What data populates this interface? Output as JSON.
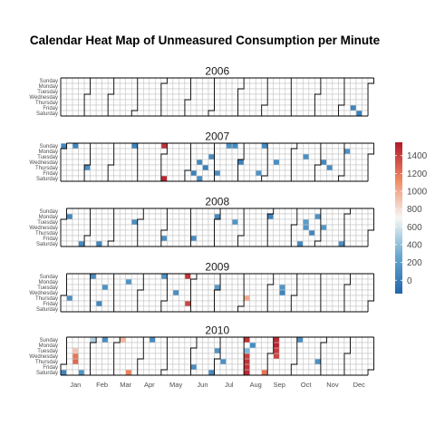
{
  "chart_data": {
    "type": "heatmap",
    "title": "Calendar Heat Map of Unmeasured Consumption per Minute",
    "years": [
      2006,
      2007,
      2008,
      2009,
      2010
    ],
    "weekdays": [
      "Sunday",
      "Monday",
      "Tuesday",
      "Wednesday",
      "Thursday",
      "Friday",
      "Saturday"
    ],
    "months": [
      "Jan",
      "Feb",
      "Mar",
      "Apr",
      "May",
      "Jun",
      "Jul",
      "Aug",
      "Sep",
      "Oct",
      "Nov",
      "Dec"
    ],
    "legend": {
      "ticks": [
        0,
        200,
        400,
        600,
        800,
        1000,
        1200,
        1400
      ],
      "min": -150,
      "max": 1550,
      "position": "right"
    },
    "colors": {
      "low": "#2166ac",
      "mid": "#f7f7f7",
      "high": "#b2182b",
      "grid": "#bdbdbd",
      "border": "#000000"
    },
    "cells": [
      {
        "year": 2006,
        "week": 49,
        "day": 5,
        "value": 40
      },
      {
        "year": 2006,
        "week": 50,
        "day": 6,
        "value": 5
      },
      {
        "year": 2007,
        "week": 0,
        "day": 0,
        "value": 60
      },
      {
        "year": 2007,
        "week": 2,
        "day": 0,
        "value": 45
      },
      {
        "year": 2007,
        "week": 4,
        "day": 4,
        "value": 100
      },
      {
        "year": 2007,
        "week": 12,
        "day": 0,
        "value": 40
      },
      {
        "year": 2007,
        "week": 17,
        "day": 6,
        "value": 1500
      },
      {
        "year": 2007,
        "week": 17,
        "day": 0,
        "value": 1450
      },
      {
        "year": 2007,
        "week": 22,
        "day": 5,
        "value": 20
      },
      {
        "year": 2007,
        "week": 23,
        "day": 3,
        "value": 60
      },
      {
        "year": 2007,
        "week": 23,
        "day": 6,
        "value": 90
      },
      {
        "year": 2007,
        "week": 24,
        "day": 4,
        "value": 10
      },
      {
        "year": 2007,
        "week": 25,
        "day": 2,
        "value": 80
      },
      {
        "year": 2007,
        "week": 26,
        "day": 5,
        "value": 100
      },
      {
        "year": 2007,
        "week": 28,
        "day": 0,
        "value": 120
      },
      {
        "year": 2007,
        "week": 29,
        "day": 0,
        "value": 90
      },
      {
        "year": 2007,
        "week": 30,
        "day": 3,
        "value": 30
      },
      {
        "year": 2007,
        "week": 33,
        "day": 5,
        "value": 140
      },
      {
        "year": 2007,
        "week": 34,
        "day": 0,
        "value": 80
      },
      {
        "year": 2007,
        "week": 36,
        "day": 3,
        "value": 100
      },
      {
        "year": 2007,
        "week": 41,
        "day": 2,
        "value": 110
      },
      {
        "year": 2007,
        "week": 44,
        "day": 3,
        "value": 70
      },
      {
        "year": 2007,
        "week": 45,
        "day": 4,
        "value": 90
      },
      {
        "year": 2007,
        "week": 48,
        "day": 1,
        "value": 130
      },
      {
        "year": 2008,
        "week": 1,
        "day": 1,
        "value": 60
      },
      {
        "year": 2008,
        "week": 3,
        "day": 6,
        "value": 70
      },
      {
        "year": 2008,
        "week": 6,
        "day": 6,
        "value": 40
      },
      {
        "year": 2008,
        "week": 12,
        "day": 2,
        "value": 110
      },
      {
        "year": 2008,
        "week": 17,
        "day": 5,
        "value": 100
      },
      {
        "year": 2008,
        "week": 22,
        "day": 5,
        "value": 80
      },
      {
        "year": 2008,
        "week": 26,
        "day": 1,
        "value": 60
      },
      {
        "year": 2008,
        "week": 29,
        "day": 2,
        "value": 150
      },
      {
        "year": 2008,
        "week": 35,
        "day": 1,
        "value": 30
      },
      {
        "year": 2008,
        "week": 40,
        "day": 6,
        "value": 50
      },
      {
        "year": 2008,
        "week": 41,
        "day": 2,
        "value": 200
      },
      {
        "year": 2008,
        "week": 41,
        "day": 3,
        "value": 150
      },
      {
        "year": 2008,
        "week": 42,
        "day": 4,
        "value": 60
      },
      {
        "year": 2008,
        "week": 43,
        "day": 1,
        "value": 130
      },
      {
        "year": 2008,
        "week": 44,
        "day": 3,
        "value": 160
      },
      {
        "year": 2008,
        "week": 47,
        "day": 6,
        "value": 100
      },
      {
        "year": 2009,
        "week": 1,
        "day": 4,
        "value": 110
      },
      {
        "year": 2009,
        "week": 5,
        "day": 0,
        "value": 90
      },
      {
        "year": 2009,
        "week": 7,
        "day": 2,
        "value": 120
      },
      {
        "year": 2009,
        "week": 6,
        "day": 5,
        "value": 60
      },
      {
        "year": 2009,
        "week": 11,
        "day": 1,
        "value": 140
      },
      {
        "year": 2009,
        "week": 17,
        "day": 0,
        "value": 130
      },
      {
        "year": 2009,
        "week": 19,
        "day": 3,
        "value": 100
      },
      {
        "year": 2009,
        "week": 21,
        "day": 0,
        "value": 1450
      },
      {
        "year": 2009,
        "week": 21,
        "day": 1,
        "value": 700
      },
      {
        "year": 2009,
        "week": 21,
        "day": 5,
        "value": 1380
      },
      {
        "year": 2009,
        "week": 26,
        "day": 2,
        "value": 180
      },
      {
        "year": 2009,
        "week": 31,
        "day": 4,
        "value": 1000
      },
      {
        "year": 2009,
        "week": 37,
        "day": 3,
        "value": 50
      },
      {
        "year": 2009,
        "week": 37,
        "day": 2,
        "value": 150
      },
      {
        "year": 2010,
        "week": 0,
        "day": 6,
        "value": 40
      },
      {
        "year": 2010,
        "week": 2,
        "day": 2,
        "value": 900
      },
      {
        "year": 2010,
        "week": 2,
        "day": 3,
        "value": 1200
      },
      {
        "year": 2010,
        "week": 2,
        "day": 4,
        "value": 1250
      },
      {
        "year": 2010,
        "week": 3,
        "day": 6,
        "value": 140
      },
      {
        "year": 2010,
        "week": 5,
        "day": 0,
        "value": 500
      },
      {
        "year": 2010,
        "week": 7,
        "day": 0,
        "value": 100
      },
      {
        "year": 2010,
        "week": 10,
        "day": 0,
        "value": 950
      },
      {
        "year": 2010,
        "week": 11,
        "day": 6,
        "value": 1150
      },
      {
        "year": 2010,
        "week": 15,
        "day": 0,
        "value": 80
      },
      {
        "year": 2010,
        "week": 22,
        "day": 5,
        "value": 100
      },
      {
        "year": 2010,
        "week": 25,
        "day": 6,
        "value": 70
      },
      {
        "year": 2010,
        "week": 26,
        "day": 2,
        "value": 150
      },
      {
        "year": 2010,
        "week": 27,
        "day": 4,
        "value": 120
      },
      {
        "year": 2010,
        "week": 31,
        "day": 2,
        "value": 350
      },
      {
        "year": 2010,
        "week": 31,
        "day": 3,
        "value": 1400
      },
      {
        "year": 2010,
        "week": 31,
        "day": 4,
        "value": 1450
      },
      {
        "year": 2010,
        "week": 31,
        "day": 5,
        "value": 1450
      },
      {
        "year": 2010,
        "week": 31,
        "day": 6,
        "value": 1480
      },
      {
        "year": 2010,
        "week": 31,
        "day": 0,
        "value": 1450
      },
      {
        "year": 2010,
        "week": 32,
        "day": 1,
        "value": 90
      },
      {
        "year": 2010,
        "week": 34,
        "day": 6,
        "value": 1200
      },
      {
        "year": 2010,
        "week": 36,
        "day": 0,
        "value": 1480
      },
      {
        "year": 2010,
        "week": 36,
        "day": 1,
        "value": 1500
      },
      {
        "year": 2010,
        "week": 36,
        "day": 2,
        "value": 1420
      },
      {
        "year": 2010,
        "week": 36,
        "day": 3,
        "value": 1380
      },
      {
        "year": 2010,
        "week": 40,
        "day": 0,
        "value": 110
      },
      {
        "year": 2010,
        "week": 43,
        "day": 4,
        "value": 130
      }
    ]
  }
}
